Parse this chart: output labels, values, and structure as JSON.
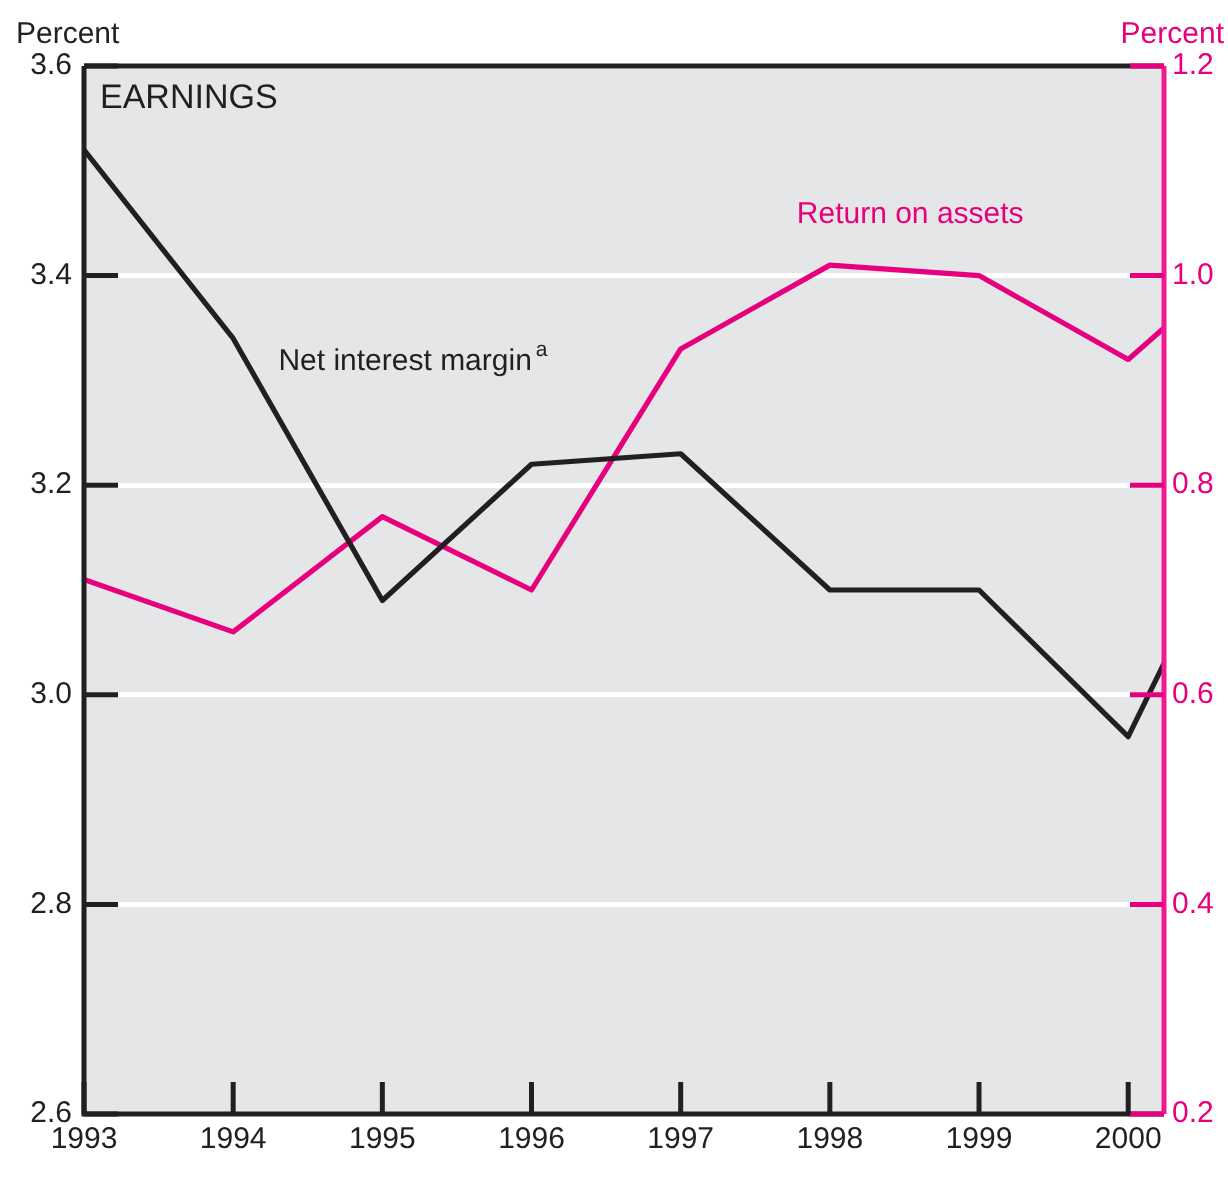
{
  "chart_data": {
    "type": "line",
    "title": "EARNINGS",
    "ylabel": "Percent",
    "y2label": "Percent",
    "x": [
      1993,
      1994,
      1995,
      1996,
      1997,
      1998,
      1999,
      2000,
      2000.24
    ],
    "xlim": [
      1993,
      2000.24
    ],
    "xticks": [
      1993,
      1994,
      1995,
      1996,
      1997,
      1998,
      1999,
      2000
    ],
    "ylim": [
      2.6,
      3.6
    ],
    "yticks": [
      {
        "value": 2.6,
        "label": "2.6"
      },
      {
        "value": 2.8,
        "label": "2.8"
      },
      {
        "value": 3.0,
        "label": "3.0"
      },
      {
        "value": 3.2,
        "label": "3.2"
      },
      {
        "value": 3.4,
        "label": "3.4"
      },
      {
        "value": 3.6,
        "label": "3.6"
      }
    ],
    "y2lim": [
      0.2,
      1.2
    ],
    "y2ticks": [
      {
        "value": 0.2,
        "label": "0.2"
      },
      {
        "value": 0.4,
        "label": "0.4"
      },
      {
        "value": 0.6,
        "label": "0.6"
      },
      {
        "value": 0.8,
        "label": "0.8"
      },
      {
        "value": 1.0,
        "label": "1.0"
      },
      {
        "value": 1.2,
        "label": "1.2"
      }
    ],
    "grid": "y",
    "legend": false,
    "marker": "none",
    "line_style": "solid",
    "series": [
      {
        "name": "Net interest margin$^{a}$",
        "color": "#231f20",
        "values": [
          3.52,
          3.34,
          3.09,
          3.22,
          3.23,
          3.1,
          3.1,
          2.96,
          3.03
        ]
      },
      {
        "name": "Return on assets",
        "color": "#e6007e",
        "axis": "y2",
        "values": [
          0.71,
          0.66,
          0.77,
          0.7,
          0.93,
          1.01,
          1.0,
          0.92,
          0.95
        ]
      }
    ]
  }
}
